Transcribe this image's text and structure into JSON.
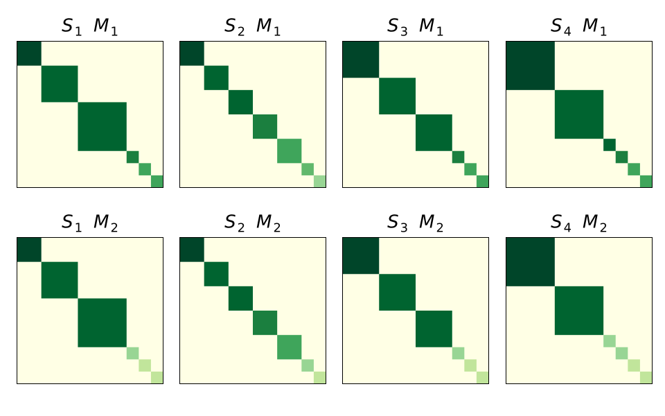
{
  "chart_data": {
    "type": "heatmap",
    "description_of_structure": "block-diagonal matrices; each panel lists diagonal blocks (size in cells, intensity 0-1)",
    "grid_size": 12,
    "colormap": "Greens",
    "panels": [
      {
        "title": {
          "s": "S",
          "s_sub": "1",
          "m": "M",
          "m_sub": "1"
        },
        "blocks": [
          {
            "size": 2,
            "intensity": 1.0
          },
          {
            "size": 3,
            "intensity": 0.9
          },
          {
            "size": 4,
            "intensity": 0.8
          },
          {
            "size": 1,
            "intensity": 0.7
          },
          {
            "size": 1,
            "intensity": 0.62
          },
          {
            "size": 1,
            "intensity": 0.5
          }
        ]
      },
      {
        "title": {
          "s": "S",
          "s_sub": "2",
          "m": "M",
          "m_sub": "1"
        },
        "blocks": [
          {
            "size": 2,
            "intensity": 1.0
          },
          {
            "size": 2,
            "intensity": 0.9
          },
          {
            "size": 2,
            "intensity": 0.8
          },
          {
            "size": 2,
            "intensity": 0.7
          },
          {
            "size": 2,
            "intensity": 0.58
          },
          {
            "size": 1,
            "intensity": 0.4
          },
          {
            "size": 1,
            "intensity": 0.32
          }
        ]
      },
      {
        "title": {
          "s": "S",
          "s_sub": "3",
          "m": "M",
          "m_sub": "1"
        },
        "blocks": [
          {
            "size": 3,
            "intensity": 1.0
          },
          {
            "size": 3,
            "intensity": 0.9
          },
          {
            "size": 3,
            "intensity": 0.8
          },
          {
            "size": 1,
            "intensity": 0.7
          },
          {
            "size": 1,
            "intensity": 0.62
          },
          {
            "size": 1,
            "intensity": 0.5
          }
        ]
      },
      {
        "title": {
          "s": "S",
          "s_sub": "4",
          "m": "M",
          "m_sub": "1"
        },
        "blocks": [
          {
            "size": 4,
            "intensity": 1.0
          },
          {
            "size": 4,
            "intensity": 0.9
          },
          {
            "size": 1,
            "intensity": 0.82
          },
          {
            "size": 1,
            "intensity": 0.7
          },
          {
            "size": 1,
            "intensity": 0.62
          },
          {
            "size": 1,
            "intensity": 0.5
          }
        ]
      },
      {
        "title": {
          "s": "S",
          "s_sub": "1",
          "m": "M",
          "m_sub": "2"
        },
        "blocks": [
          {
            "size": 2,
            "intensity": 1.0
          },
          {
            "size": 3,
            "intensity": 0.9
          },
          {
            "size": 4,
            "intensity": 0.8
          },
          {
            "size": 1,
            "intensity": 0.25
          },
          {
            "size": 1,
            "intensity": 0.2
          },
          {
            "size": 1,
            "intensity": 0.15
          }
        ]
      },
      {
        "title": {
          "s": "S",
          "s_sub": "2",
          "m": "M",
          "m_sub": "2"
        },
        "blocks": [
          {
            "size": 2,
            "intensity": 1.0
          },
          {
            "size": 2,
            "intensity": 0.9
          },
          {
            "size": 2,
            "intensity": 0.8
          },
          {
            "size": 2,
            "intensity": 0.7
          },
          {
            "size": 2,
            "intensity": 0.58
          },
          {
            "size": 1,
            "intensity": 0.22
          },
          {
            "size": 1,
            "intensity": 0.17
          }
        ]
      },
      {
        "title": {
          "s": "S",
          "s_sub": "3",
          "m": "M",
          "m_sub": "2"
        },
        "blocks": [
          {
            "size": 3,
            "intensity": 1.0
          },
          {
            "size": 3,
            "intensity": 0.9
          },
          {
            "size": 3,
            "intensity": 0.8
          },
          {
            "size": 1,
            "intensity": 0.22
          },
          {
            "size": 1,
            "intensity": 0.18
          },
          {
            "size": 1,
            "intensity": 0.14
          }
        ]
      },
      {
        "title": {
          "s": "S",
          "s_sub": "4",
          "m": "M",
          "m_sub": "2"
        },
        "blocks": [
          {
            "size": 4,
            "intensity": 1.0
          },
          {
            "size": 4,
            "intensity": 0.9
          },
          {
            "size": 1,
            "intensity": 0.28
          },
          {
            "size": 1,
            "intensity": 0.22
          },
          {
            "size": 1,
            "intensity": 0.18
          },
          {
            "size": 1,
            "intensity": 0.14
          }
        ]
      }
    ],
    "colors": {
      "background": "#ffffe5",
      "palette": [
        "#e9f6b0",
        "#c1e59b",
        "#98d594",
        "#61b86c",
        "#3fa55b",
        "#1b7f3f",
        "#006430",
        "#004529"
      ]
    },
    "grid": false,
    "axes_ticks": false
  }
}
